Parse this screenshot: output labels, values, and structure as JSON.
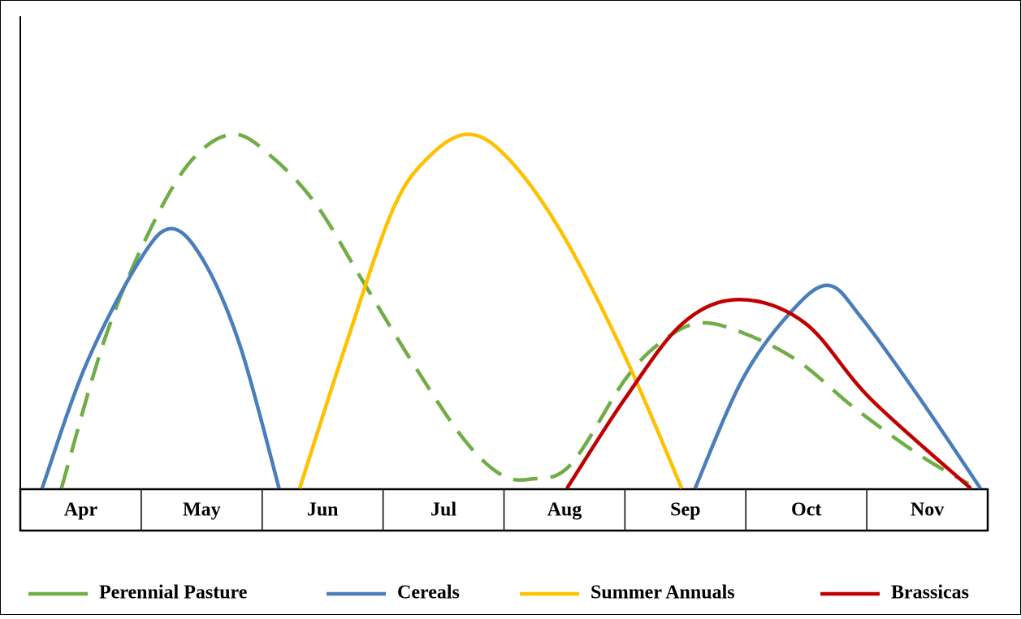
{
  "chart_data": {
    "type": "line",
    "categories": [
      "Apr",
      "May",
      "Jun",
      "Jul",
      "Aug",
      "Sep",
      "Oct",
      "Nov"
    ],
    "xlim": [
      0,
      8
    ],
    "ylim": [
      0,
      100
    ],
    "series": [
      {
        "name": "Perennial Pasture",
        "color": "#70ad47",
        "line_style": "dashed",
        "x": [
          0.34,
          0.69,
          1.04,
          1.4,
          1.76,
          2.09,
          2.45,
          2.83,
          3.21,
          3.65,
          3.97,
          4.23,
          4.55,
          5.0,
          5.3,
          5.61,
          5.97,
          6.43,
          6.9,
          7.44,
          7.84
        ],
        "values": [
          0,
          31,
          53,
          69,
          75,
          70,
          60,
          44,
          28,
          11,
          3,
          2,
          5,
          23,
          31,
          35,
          33,
          27,
          17,
          7,
          1
        ]
      },
      {
        "name": "Cereals",
        "color": "#4a7ebb",
        "line_style": "solid",
        "x": [
          0.18,
          0.54,
          0.98,
          1.25,
          1.52,
          1.82,
          2.14,
          null,
          5.58,
          5.97,
          6.36,
          6.68,
          6.96,
          7.44,
          7.94
        ],
        "values": [
          0,
          26,
          48,
          55,
          48,
          30,
          0,
          null,
          0,
          23,
          37,
          43,
          36,
          19,
          0
        ]
      },
      {
        "name": "Summer Annuals",
        "color": "#ffc000",
        "line_style": "solid",
        "x": [
          2.31,
          2.7,
          3.08,
          3.37,
          3.7,
          4.03,
          4.48,
          5.0,
          5.47
        ],
        "values": [
          0,
          31,
          59,
          70,
          75,
          70,
          54,
          28,
          0
        ]
      },
      {
        "name": "Brassicas",
        "color": "#c00000",
        "line_style": "solid",
        "x": [
          4.52,
          5.0,
          5.48,
          5.95,
          6.49,
          7.03,
          7.86
        ],
        "values": [
          0,
          19,
          35,
          40,
          35,
          19,
          0
        ]
      }
    ]
  }
}
